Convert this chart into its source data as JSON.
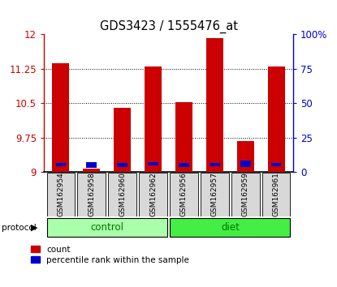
{
  "title": "GDS3423 / 1555476_at",
  "samples": [
    "GSM162954",
    "GSM162958",
    "GSM162960",
    "GSM162962",
    "GSM162956",
    "GSM162957",
    "GSM162959",
    "GSM162961"
  ],
  "groups": [
    "control",
    "control",
    "control",
    "control",
    "diet",
    "diet",
    "diet",
    "diet"
  ],
  "red_values": [
    11.38,
    9.08,
    10.4,
    11.3,
    10.53,
    11.92,
    9.68,
    11.3
  ],
  "blue_values": [
    9.13,
    9.1,
    9.12,
    9.14,
    9.12,
    9.13,
    9.12,
    9.13
  ],
  "blue_heights": [
    0.08,
    0.12,
    0.08,
    0.08,
    0.08,
    0.08,
    0.14,
    0.08
  ],
  "ymin": 9.0,
  "ymax": 12.0,
  "yticks": [
    9.0,
    9.75,
    10.5,
    11.25,
    12.0
  ],
  "ytick_labels": [
    "9",
    "9.75",
    "10.5",
    "11.25",
    "12"
  ],
  "right_yticks": [
    0,
    25,
    50,
    75,
    100
  ],
  "right_ytick_labels": [
    "0",
    "25",
    "50",
    "75",
    "100%"
  ],
  "bar_color": "#cc0000",
  "blue_color": "#0000cc",
  "control_color": "#aaffaa",
  "diet_color": "#44ee44",
  "group_label_color": "#007700",
  "axis_color_left": "#cc0000",
  "axis_color_right": "#0000cc",
  "bar_width": 0.55,
  "bg_color": "#ffffff",
  "grid_yticks": [
    9.75,
    10.5,
    11.25
  ],
  "group_info": [
    {
      "label": "control",
      "start": 0,
      "end": 3
    },
    {
      "label": "diet",
      "start": 4,
      "end": 7
    }
  ]
}
